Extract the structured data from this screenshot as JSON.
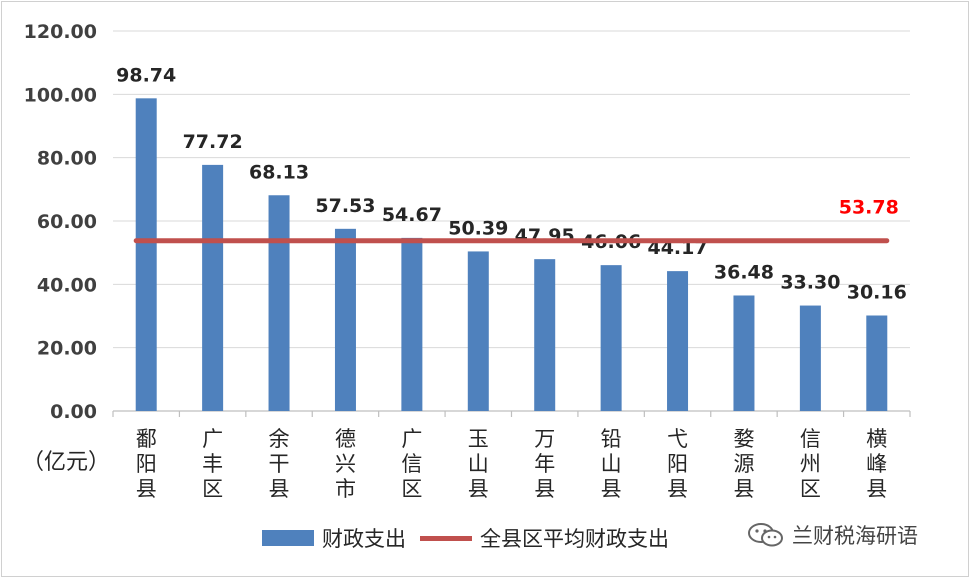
{
  "chart_data": {
    "type": "bar",
    "categories": [
      "鄱阳县",
      "广丰区",
      "余干县",
      "德兴市",
      "广信区",
      "玉山县",
      "万年县",
      "铅山县",
      "弋阳县",
      "婺源县",
      "信州区",
      "横峰县"
    ],
    "series": [
      {
        "name": "财政支出",
        "type": "bar",
        "color": "#4f81bd",
        "values": [
          98.74,
          77.72,
          68.13,
          57.53,
          54.67,
          50.39,
          47.95,
          46.06,
          44.17,
          36.48,
          33.3,
          30.16
        ],
        "labels": [
          "98.74",
          "77.72",
          "68.13",
          "57.53",
          "54.67",
          "50.39",
          "47.95",
          "46.06",
          "44.17",
          "36.48",
          "33.30",
          "30.16"
        ]
      },
      {
        "name": "全县区平均财政支出",
        "type": "line",
        "color": "#c0504d",
        "value": 53.78,
        "label": "53.78",
        "label_color": "#ff0000"
      }
    ],
    "ylim": [
      0,
      120
    ],
    "yticks": [
      "0.00",
      "20.00",
      "40.00",
      "60.00",
      "80.00",
      "100.00",
      "120.00"
    ],
    "ylabel": "（亿元）",
    "grid": true,
    "legend": "bottom"
  },
  "watermark": "兰财税海研语"
}
